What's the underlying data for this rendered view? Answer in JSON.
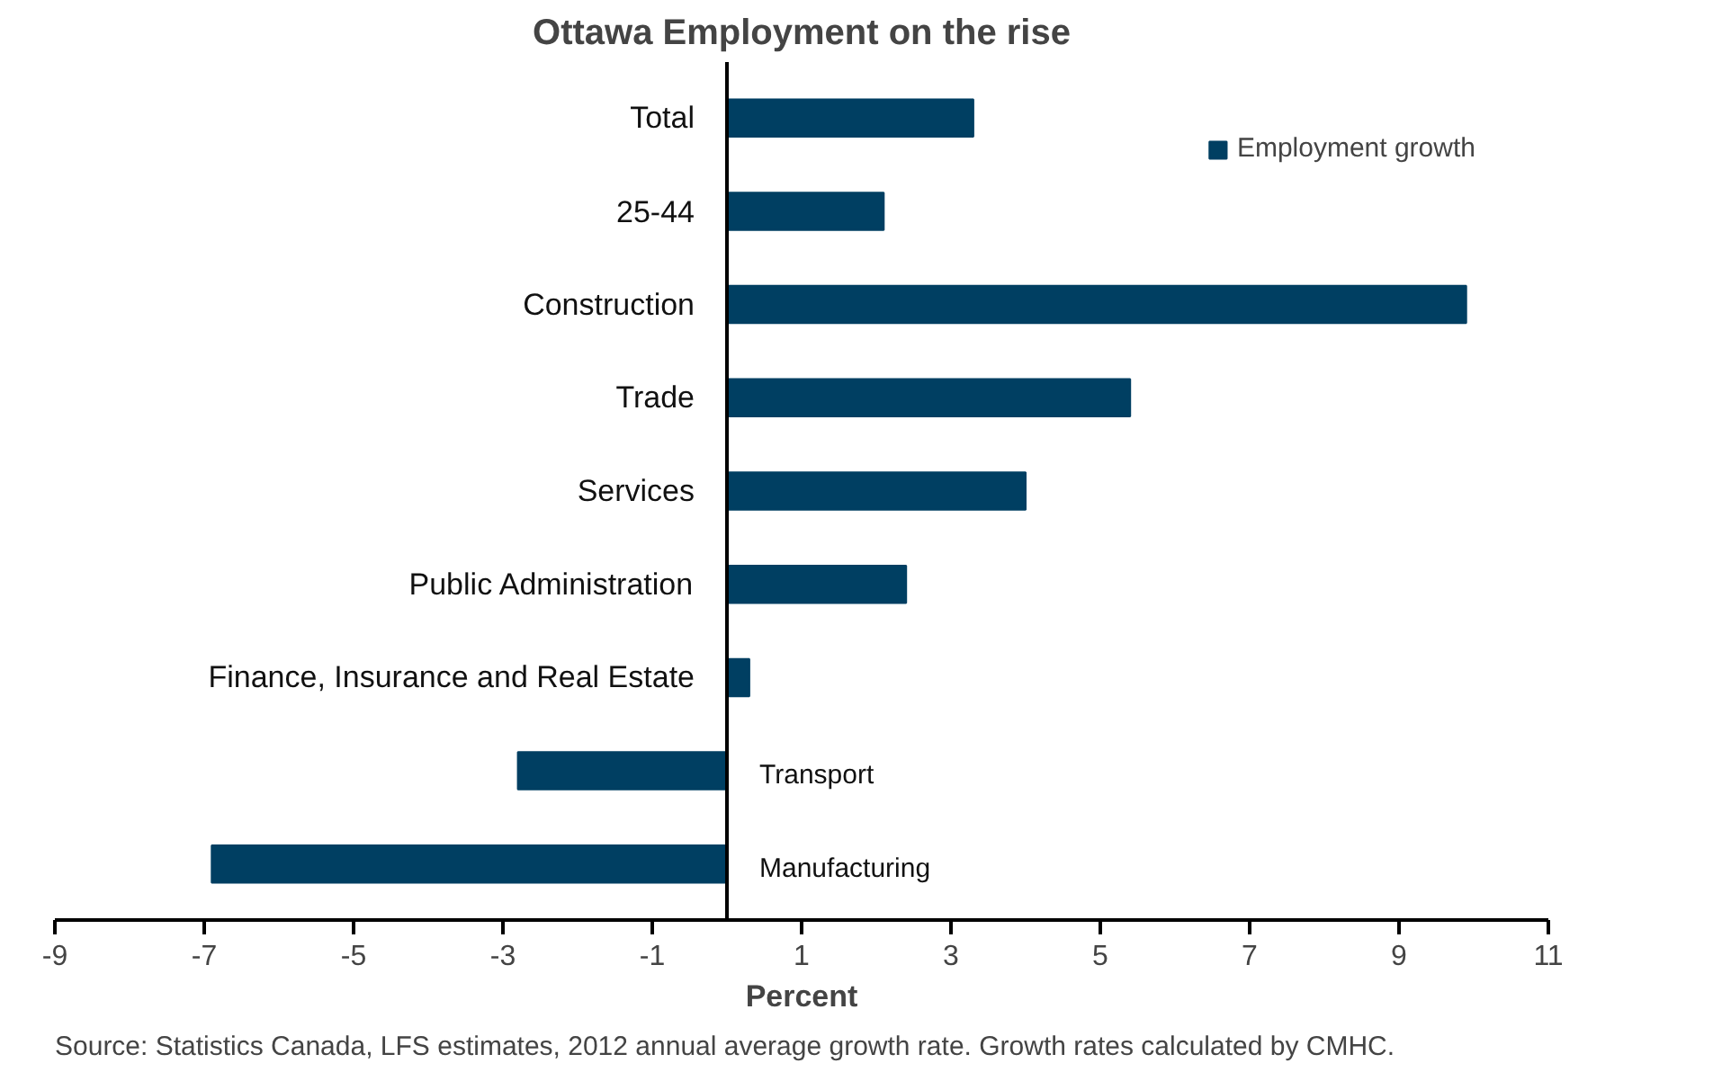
{
  "chart_data": {
    "type": "bar",
    "orientation": "horizontal",
    "title": "Ottawa Employment on the rise",
    "xlabel": "Percent",
    "categories": [
      "Total",
      "25-44",
      "Construction",
      "Trade",
      "Services",
      "Public Administration",
      "Finance, Insurance and Real Estate",
      "Transport",
      "Manufacturing"
    ],
    "series": [
      {
        "name": "Employment growth",
        "color": "#003f62",
        "values": [
          3.3,
          2.1,
          9.9,
          5.4,
          4.0,
          2.4,
          0.3,
          -2.8,
          -6.9
        ]
      }
    ],
    "xlim": [
      -9,
      11
    ],
    "xticks": [
      -9,
      -7,
      -5,
      -3,
      -1,
      1,
      3,
      5,
      7,
      9,
      11
    ],
    "grid": false,
    "legend": "top right",
    "annotations": [
      "Source: Statistics Canada, LFS estimates, 2012 annual average growth rate. Growth rates calculated by CMHC."
    ]
  }
}
